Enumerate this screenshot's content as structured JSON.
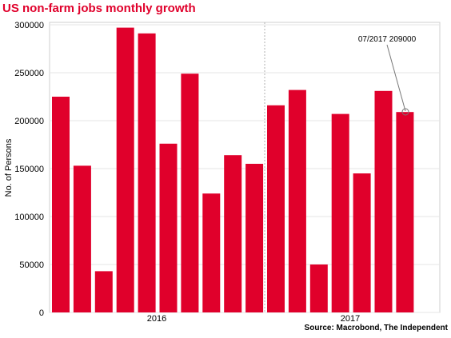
{
  "chart_data": {
    "type": "bar",
    "title": "US non-farm jobs monthly growth",
    "xlabel": "",
    "ylabel": "No. of Persons",
    "ylim": [
      0,
      300000
    ],
    "yticks": [
      0,
      50000,
      100000,
      150000,
      200000,
      250000,
      300000
    ],
    "year_labels": [
      "2016",
      "2017"
    ],
    "annotation": "07/2017 209000",
    "source": "Source: Macrobond, The Independent",
    "bar_color": "#e0002b",
    "grid": true,
    "values": [
      225000,
      153000,
      43000,
      297000,
      291000,
      176000,
      249000,
      124000,
      164000,
      155000,
      216000,
      232000,
      50000,
      207000,
      145000,
      231000,
      209000
    ]
  }
}
